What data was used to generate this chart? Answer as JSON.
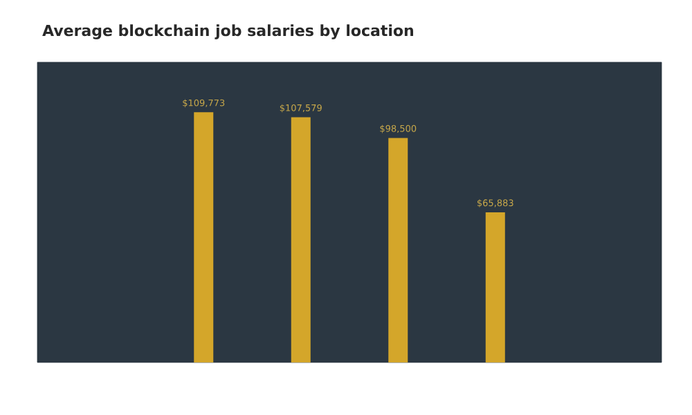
{
  "chart_data": {
    "type": "bar",
    "title": "Average blockchain job salaries by location",
    "categories": [
      null,
      null,
      null,
      null
    ],
    "values": [
      109773,
      107579,
      98500,
      65883
    ],
    "value_labels": [
      "$109,773",
      "$107,579",
      "$98,500",
      "$65,883"
    ],
    "color": "#d4a62a"
  }
}
